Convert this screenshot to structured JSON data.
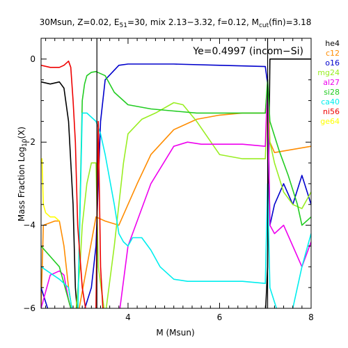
{
  "chart_data": {
    "type": "line",
    "title": "30Msun, Z=0.02, E51=30, mix 2.13−3.32, f=0.12, Mcut(fin)=3.18",
    "title_parts": {
      "prefix": "30Msun, Z=0.02, E",
      "e_sub": "51",
      "mid": "=30, mix 2.13−3.32, f=0.12, M",
      "m_sub": "cut",
      "suffix": "(fin)=3.18"
    },
    "annotation": "Ye=0.4997 (incom−Si)",
    "xlabel": "M (Msun)",
    "ylabel_parts": {
      "prefix": "Mass Fraction Log",
      "sub": "10",
      "suffix": "(X)"
    },
    "xlim": [
      2.1,
      8.0
    ],
    "ylim": [
      -6,
      0.5
    ],
    "xticks": [
      4,
      6,
      8
    ],
    "yticks": [
      0,
      -2,
      -4,
      -6
    ],
    "vlines": [
      3.32,
      7.05
    ],
    "grid": false,
    "legend_position": "right",
    "series": [
      {
        "name": "he4",
        "color": "#000000",
        "x": [
          2.1,
          2.3,
          2.5,
          2.6,
          2.7,
          2.8,
          2.85,
          2.9,
          2.95,
          3.0,
          3.3,
          3.35,
          7.0,
          7.05,
          7.1,
          8.0
        ],
        "y": [
          -0.55,
          -0.6,
          -0.55,
          -0.7,
          -1.5,
          -3.5,
          -5.5,
          -6.2,
          -6.2,
          -6.2,
          -6.2,
          -6.2,
          -6.2,
          -5.0,
          0.0,
          0.0
        ]
      },
      {
        "name": "c12",
        "color": "#ff8c00",
        "x": [
          2.1,
          2.15,
          2.4,
          2.5,
          2.6,
          2.7,
          2.8,
          2.9,
          3.3,
          3.5,
          3.8,
          4.0,
          4.2,
          4.5,
          5.0,
          5.5,
          6.0,
          6.5,
          7.0,
          7.05,
          7.1,
          7.2,
          8.0
        ],
        "y": [
          -6.0,
          -4.0,
          -3.9,
          -3.9,
          -4.5,
          -5.5,
          -6.2,
          -6.2,
          -3.8,
          -3.9,
          -4.0,
          -3.5,
          -3.0,
          -2.3,
          -1.7,
          -1.45,
          -1.35,
          -1.3,
          -1.3,
          -0.6,
          -2.0,
          -2.25,
          -2.1
        ]
      },
      {
        "name": "o16",
        "color": "#0000cc",
        "x": [
          2.1,
          2.3,
          2.5,
          3.0,
          3.2,
          3.3,
          3.4,
          3.5,
          3.8,
          4.0,
          5.0,
          6.0,
          7.0,
          7.05,
          7.1,
          7.2,
          7.4,
          7.6,
          7.8,
          8.0
        ],
        "y": [
          -5.5,
          -6.2,
          -6.2,
          -6.2,
          -5.5,
          -4.5,
          -1.5,
          -0.5,
          -0.15,
          -0.12,
          -0.12,
          -0.15,
          -0.18,
          -0.6,
          -4.0,
          -3.5,
          -3.0,
          -3.5,
          -2.8,
          -3.5
        ]
      },
      {
        "name": "mg24",
        "color": "#99ee22",
        "x": [
          2.1,
          2.5,
          2.7,
          2.85,
          2.95,
          3.0,
          3.1,
          3.2,
          3.3,
          3.35,
          3.5,
          3.7,
          3.8,
          3.9,
          4.0,
          4.3,
          4.6,
          5.0,
          5.2,
          5.5,
          6.0,
          6.5,
          7.0,
          7.05,
          7.1,
          7.2,
          7.4,
          7.6,
          7.8,
          8.0
        ],
        "y": [
          -6.0,
          -6.2,
          -6.2,
          -6.2,
          -5.0,
          -4.0,
          -3.0,
          -2.5,
          -2.5,
          -5.0,
          -6.2,
          -4.5,
          -3.5,
          -2.5,
          -1.8,
          -1.45,
          -1.3,
          -1.05,
          -1.1,
          -1.5,
          -2.3,
          -2.4,
          -2.4,
          -1.0,
          -2.0,
          -2.5,
          -3.2,
          -3.5,
          -3.6,
          -3.2
        ]
      },
      {
        "name": "al27",
        "color": "#ee00ee",
        "x": [
          2.1,
          2.3,
          2.5,
          2.6,
          2.7,
          2.8,
          2.85,
          2.9,
          3.3,
          3.5,
          3.7,
          3.8,
          4.0,
          4.5,
          5.0,
          5.3,
          5.6,
          6.0,
          6.5,
          7.0,
          7.05,
          7.1,
          7.2,
          7.4,
          7.6,
          7.8,
          8.0
        ],
        "y": [
          -6.0,
          -5.2,
          -5.1,
          -5.2,
          -5.8,
          -6.2,
          -6.2,
          -6.2,
          -6.2,
          -6.2,
          -6.2,
          -6.2,
          -4.5,
          -3.0,
          -2.1,
          -2.0,
          -2.05,
          -2.05,
          -2.05,
          -2.1,
          -0.5,
          -4.0,
          -4.2,
          -4.0,
          -4.5,
          -5.0,
          -4.4
        ]
      },
      {
        "name": "si28",
        "color": "#22cc22",
        "x": [
          2.1,
          2.5,
          2.8,
          2.9,
          3.0,
          3.05,
          3.1,
          3.2,
          3.3,
          3.5,
          3.7,
          4.0,
          4.5,
          5.0,
          5.5,
          6.0,
          6.5,
          7.0,
          7.05,
          7.1,
          7.3,
          7.5,
          7.7,
          7.8,
          8.0
        ],
        "y": [
          -4.5,
          -5.0,
          -6.2,
          -6.2,
          -1.0,
          -0.6,
          -0.4,
          -0.32,
          -0.3,
          -0.4,
          -0.8,
          -1.1,
          -1.2,
          -1.25,
          -1.3,
          -1.3,
          -1.3,
          -1.3,
          -0.5,
          -1.5,
          -2.2,
          -2.8,
          -3.5,
          -4.0,
          -3.8
        ]
      },
      {
        "name": "ca40",
        "color": "#00eeee",
        "x": [
          2.1,
          2.5,
          2.7,
          2.8,
          2.9,
          3.0,
          3.1,
          3.2,
          3.3,
          3.4,
          3.5,
          3.7,
          3.8,
          3.9,
          4.0,
          4.1,
          4.3,
          4.5,
          4.7,
          5.0,
          5.3,
          5.5,
          6.0,
          6.5,
          7.0,
          7.05,
          7.1,
          7.3,
          7.5,
          7.6,
          7.8,
          8.0
        ],
        "y": [
          -5.0,
          -5.3,
          -5.5,
          -6.2,
          -6.2,
          -1.3,
          -1.3,
          -1.4,
          -1.5,
          -1.8,
          -2.3,
          -3.5,
          -4.2,
          -4.4,
          -4.5,
          -4.3,
          -4.3,
          -4.6,
          -5.0,
          -5.3,
          -5.35,
          -5.35,
          -5.35,
          -5.35,
          -5.4,
          -3.0,
          -5.5,
          -6.2,
          -6.2,
          -6.0,
          -5.0,
          -4.2
        ]
      },
      {
        "name": "ni56",
        "color": "#ee0000",
        "x": [
          2.1,
          2.3,
          2.5,
          2.6,
          2.7,
          2.75,
          2.8,
          2.85,
          2.9,
          3.0,
          3.1,
          3.2,
          3.3,
          3.35,
          3.4,
          3.45,
          3.5
        ],
        "y": [
          -0.15,
          -0.2,
          -0.2,
          -0.15,
          -0.05,
          -0.2,
          -1.0,
          -2.0,
          -4.0,
          -5.5,
          -6.2,
          -6.2,
          -6.0,
          -1.5,
          -5.0,
          -6.0,
          -6.2
        ]
      },
      {
        "name": "ge64",
        "color": "#ffff00",
        "x": [
          2.1,
          2.12,
          2.15,
          2.2,
          2.3,
          2.4,
          2.5
        ],
        "y": [
          -2.5,
          -2.4,
          -3.5,
          -3.7,
          -3.8,
          -3.8,
          -3.9
        ]
      }
    ]
  }
}
